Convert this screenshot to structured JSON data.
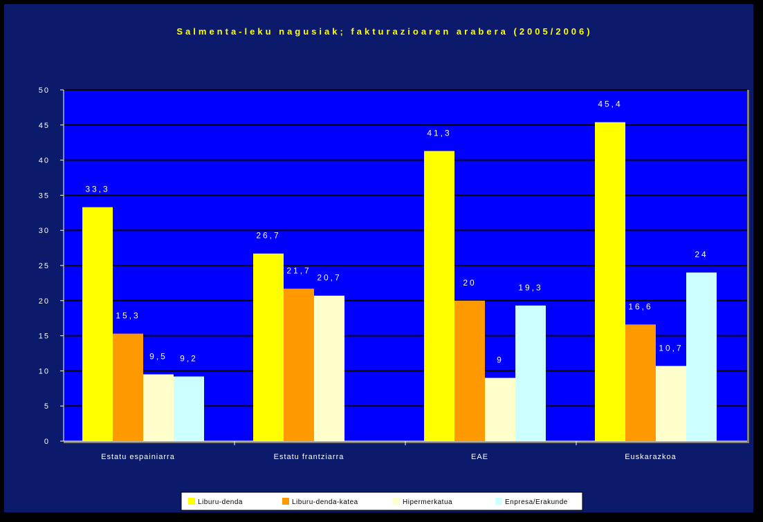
{
  "chart_data": {
    "type": "bar",
    "title": "Salmenta-leku nagusiak; fakturazioaren arabera (2005/2006)",
    "xlabel": "",
    "ylabel": "",
    "ylim": [
      0,
      50
    ],
    "yticks": [
      0,
      5,
      10,
      15,
      20,
      25,
      30,
      35,
      40,
      45,
      50
    ],
    "grid": true,
    "legend": "bottom",
    "categories": [
      "Estatu espainiarra",
      "Estatu frantziarra",
      "EAE",
      "Euskarazkoa"
    ],
    "series": [
      {
        "name": "Liburu-denda",
        "color": "#ffff00",
        "values": [
          33.3,
          26.7,
          41.3,
          45.4
        ],
        "labels": [
          "33,3",
          "26,7",
          "41,3",
          "45,4"
        ]
      },
      {
        "name": "Liburu-denda-katea",
        "color": "#ff9900",
        "values": [
          15.3,
          21.7,
          20,
          16.6
        ],
        "labels": [
          "15,3",
          "21,7",
          "20",
          "16,6"
        ]
      },
      {
        "name": "Hipermerkatua",
        "color": "#ffffcc",
        "values": [
          9.5,
          20.7,
          9,
          10.7
        ],
        "labels": [
          "9,5",
          "20,7",
          "9",
          "10,7"
        ]
      },
      {
        "name": "Enpresa/Erakunde",
        "color": "#ccffff",
        "values": [
          9.2,
          null,
          19.3,
          24
        ],
        "labels": [
          "9,2",
          "",
          "19,3",
          "24"
        ]
      }
    ],
    "colors": {
      "background": "#0b1a6a",
      "plot_area": "#0000ff",
      "gridline": "#000000",
      "text": "#ffffff",
      "title": "#ffff00"
    }
  }
}
